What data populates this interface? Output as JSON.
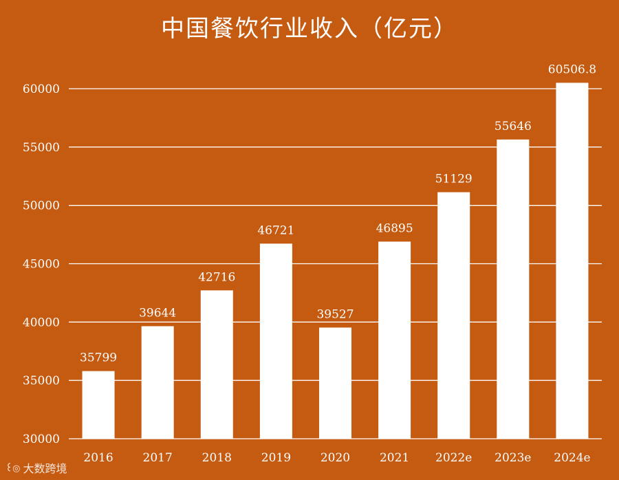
{
  "chart_data": {
    "type": "bar",
    "title": "中国餐饮行业收入（亿元）",
    "categories": [
      "2016",
      "2017",
      "2018",
      "2019",
      "2020",
      "2021",
      "2022e",
      "2023e",
      "2024e"
    ],
    "values": [
      35799,
      39644,
      42716,
      46721,
      39527,
      46895,
      51129,
      55646,
      60506.8
    ],
    "value_labels": [
      "35799",
      "39644",
      "42716",
      "46721",
      "39527",
      "46895",
      "51129",
      "55646",
      "60506.8"
    ],
    "yticks": [
      30000,
      35000,
      40000,
      45000,
      50000,
      55000,
      60000
    ],
    "ylim": [
      30000,
      60000
    ],
    "grid": true,
    "xlabel": "",
    "ylabel": ""
  },
  "colors": {
    "background": "#c55a11",
    "bar": "#ffffff",
    "text": "#ffffff",
    "grid": "#ffffff"
  },
  "watermark": {
    "text": "大数跨境",
    "icon_name": "logo-icon"
  }
}
